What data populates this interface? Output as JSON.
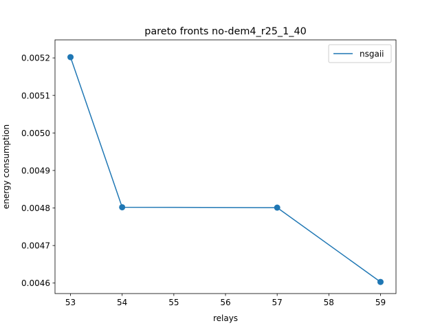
{
  "chart_data": {
    "type": "line",
    "title": "pareto fronts no-dem4_r25_1_40",
    "xlabel": "relays",
    "ylabel": "energy consumption",
    "xlim": [
      52.7,
      59.3
    ],
    "ylim": [
      0.004572,
      0.005248
    ],
    "x_ticks": [
      53,
      54,
      55,
      56,
      57,
      58,
      59
    ],
    "x_tick_labels": [
      "53",
      "54",
      "55",
      "56",
      "57",
      "58",
      "59"
    ],
    "y_ticks": [
      0.0046,
      0.0047,
      0.0048,
      0.0049,
      0.005,
      0.0051,
      0.0052
    ],
    "y_tick_labels": [
      "0.0046",
      "0.0047",
      "0.0048",
      "0.0049",
      "0.0050",
      "0.0051",
      "0.0052"
    ],
    "grid": false,
    "legend_position": "top-right",
    "series": [
      {
        "name": "nsgaii",
        "color": "#1f77b4",
        "marker": "circle",
        "x": [
          53,
          54,
          57,
          59
        ],
        "y": [
          0.005202,
          0.004802,
          0.004801,
          0.004603
        ]
      }
    ]
  }
}
